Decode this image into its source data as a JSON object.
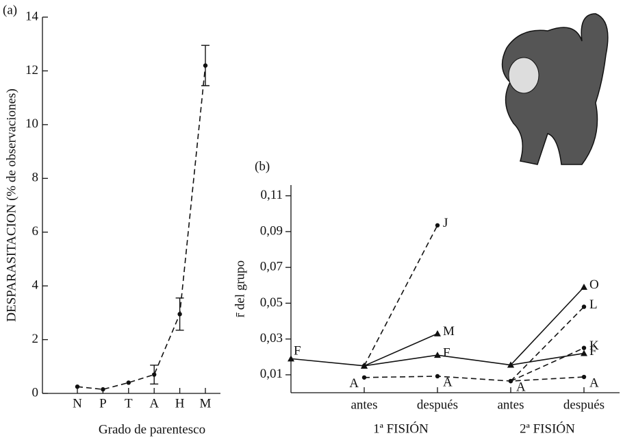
{
  "chart_data": [
    {
      "type": "line",
      "panel": "(a)",
      "xlabel": "Grado de parentesco",
      "ylabel": "DESPARASITACION (% de observaciones)",
      "categories": [
        "N",
        "P",
        "T",
        "A",
        "H",
        "M"
      ],
      "values": [
        0.25,
        0.15,
        0.4,
        0.7,
        2.95,
        12.2
      ],
      "errors": [
        null,
        null,
        null,
        0.35,
        0.6,
        0.75
      ],
      "ylim": [
        0,
        14
      ],
      "yticks": [
        0,
        2,
        4,
        6,
        8,
        10,
        12,
        14
      ],
      "line_style": "dashed",
      "marker": "circle",
      "color": "#111111"
    },
    {
      "type": "line",
      "panel": "(b)",
      "ylabel": "r̄ del grupo",
      "categories": [
        null,
        "antes",
        "después",
        "antes",
        "después"
      ],
      "group_labels": [
        "1ª FISIÓN",
        "2ª FISIÓN"
      ],
      "ylim": [
        0,
        0.116
      ],
      "yticks": [
        {
          "value": 0.01,
          "label": "0,01"
        },
        {
          "value": 0.03,
          "label": "0,03"
        },
        {
          "value": 0.05,
          "label": "0,05"
        },
        {
          "value": 0.07,
          "label": "0,07"
        },
        {
          "value": 0.09,
          "label": "0,09"
        },
        {
          "value": 0.11,
          "label": "0,11"
        }
      ],
      "series": [
        {
          "values": [
            0.019,
            0.015,
            0.021,
            0.0155,
            0.022
          ],
          "point_labels": [
            "F",
            null,
            "F",
            null,
            "F"
          ],
          "line_style": "solid",
          "marker": "triangle",
          "color": "#111111"
        },
        {
          "values": [
            null,
            0.015,
            0.0935,
            null,
            null
          ],
          "point_labels": [
            null,
            null,
            "J",
            null,
            null
          ],
          "line_style": "dashed",
          "marker": "circle",
          "color": "#111111"
        },
        {
          "values": [
            null,
            0.015,
            0.033,
            null,
            null
          ],
          "point_labels": [
            null,
            null,
            "M",
            null,
            null
          ],
          "line_style": "solid",
          "marker": "triangle",
          "color": "#111111"
        },
        {
          "values": [
            null,
            0.0085,
            0.0092,
            0.0065,
            0.0088
          ],
          "point_labels": [
            null,
            "A",
            "A",
            "A",
            "A"
          ],
          "line_style": "dashed",
          "marker": "circle",
          "color": "#111111"
        },
        {
          "values": [
            null,
            null,
            null,
            0.0155,
            0.059
          ],
          "point_labels": [
            null,
            null,
            null,
            null,
            "O"
          ],
          "line_style": "solid",
          "marker": "triangle",
          "color": "#111111"
        },
        {
          "values": [
            null,
            null,
            null,
            0.0065,
            0.048
          ],
          "point_labels": [
            null,
            null,
            null,
            null,
            "L"
          ],
          "line_style": "dashed",
          "marker": "circle",
          "color": "#111111"
        },
        {
          "values": [
            null,
            null,
            null,
            0.0065,
            0.025
          ],
          "point_labels": [
            null,
            null,
            null,
            null,
            "K"
          ],
          "line_style": "dashed",
          "marker": "circle",
          "color": "#111111"
        }
      ]
    }
  ]
}
